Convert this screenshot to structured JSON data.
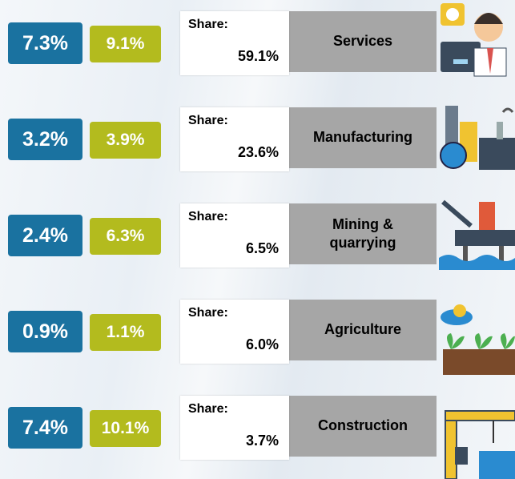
{
  "rows": [
    {
      "growth_a": "7.3%",
      "growth_b": "9.1%",
      "share_label": "Share:",
      "share": "59.1%",
      "sector": "Services"
    },
    {
      "growth_a": "3.2%",
      "growth_b": "3.9%",
      "share_label": "Share:",
      "share": "23.6%",
      "sector": "Manufacturing"
    },
    {
      "growth_a": "2.4%",
      "growth_b": "6.3%",
      "share_label": "Share:",
      "share": "6.5%",
      "sector": "Mining &\nquarrying"
    },
    {
      "growth_a": "0.9%",
      "growth_b": "1.1%",
      "share_label": "Share:",
      "share": "6.0%",
      "sector": "Agriculture"
    },
    {
      "growth_a": "7.4%",
      "growth_b": "10.1%",
      "share_label": "Share:",
      "share": "3.7%",
      "sector": "Construction"
    }
  ]
}
